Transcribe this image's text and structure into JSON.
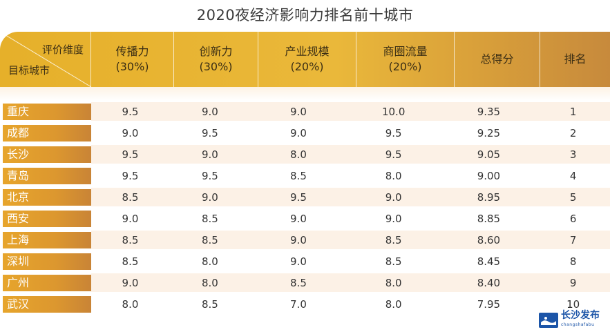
{
  "title": "2020夜经济影响力排名前十城市",
  "header": {
    "corner_top": "评价维度",
    "corner_bottom": "目标城市",
    "columns": [
      {
        "label": "传播力",
        "weight": "(30%)"
      },
      {
        "label": "创新力",
        "weight": "(30%)"
      },
      {
        "label": "产业规模",
        "weight": "(20%)"
      },
      {
        "label": "商圈流量",
        "weight": "(20%)"
      },
      {
        "label": "总得分",
        "weight": ""
      },
      {
        "label": "排名",
        "weight": ""
      }
    ]
  },
  "rows": [
    {
      "city": "重庆",
      "c1": "9.5",
      "c2": "9.0",
      "c3": "9.0",
      "c4": "10.0",
      "total": "9.35",
      "rank": "1"
    },
    {
      "city": "成都",
      "c1": "9.0",
      "c2": "9.5",
      "c3": "9.0",
      "c4": "9.5",
      "total": "9.25",
      "rank": "2"
    },
    {
      "city": "长沙",
      "c1": "9.5",
      "c2": "9.0",
      "c3": "8.0",
      "c4": "9.5",
      "total": "9.05",
      "rank": "3"
    },
    {
      "city": "青岛",
      "c1": "9.5",
      "c2": "9.5",
      "c3": "8.5",
      "c4": "8.0",
      "total": "9.00",
      "rank": "4"
    },
    {
      "city": "北京",
      "c1": "8.5",
      "c2": "9.0",
      "c3": "9.5",
      "c4": "9.0",
      "total": "8.95",
      "rank": "5"
    },
    {
      "city": "西安",
      "c1": "9.0",
      "c2": "8.5",
      "c3": "9.0",
      "c4": "9.0",
      "total": "8.85",
      "rank": "6"
    },
    {
      "city": "上海",
      "c1": "8.5",
      "c2": "8.5",
      "c3": "9.0",
      "c4": "8.5",
      "total": "8.60",
      "rank": "7"
    },
    {
      "city": "深圳",
      "c1": "8.5",
      "c2": "8.0",
      "c3": "9.0",
      "c4": "8.5",
      "total": "8.45",
      "rank": "8"
    },
    {
      "city": "广州",
      "c1": "9.0",
      "c2": "8.0",
      "c3": "8.5",
      "c4": "8.0",
      "total": "8.40",
      "rank": "9"
    },
    {
      "city": "武汉",
      "c1": "8.0",
      "c2": "8.5",
      "c3": "7.0",
      "c4": "8.0",
      "total": "7.95",
      "rank": "10"
    }
  ],
  "watermark": {
    "name": "长沙发布",
    "sub": "changshafabu"
  },
  "colors": {
    "header_gold": "#e6b02a",
    "city_orange": "#dc972f",
    "alt_row": "#fcf1e6",
    "logo_blue": "#1c55a8"
  }
}
